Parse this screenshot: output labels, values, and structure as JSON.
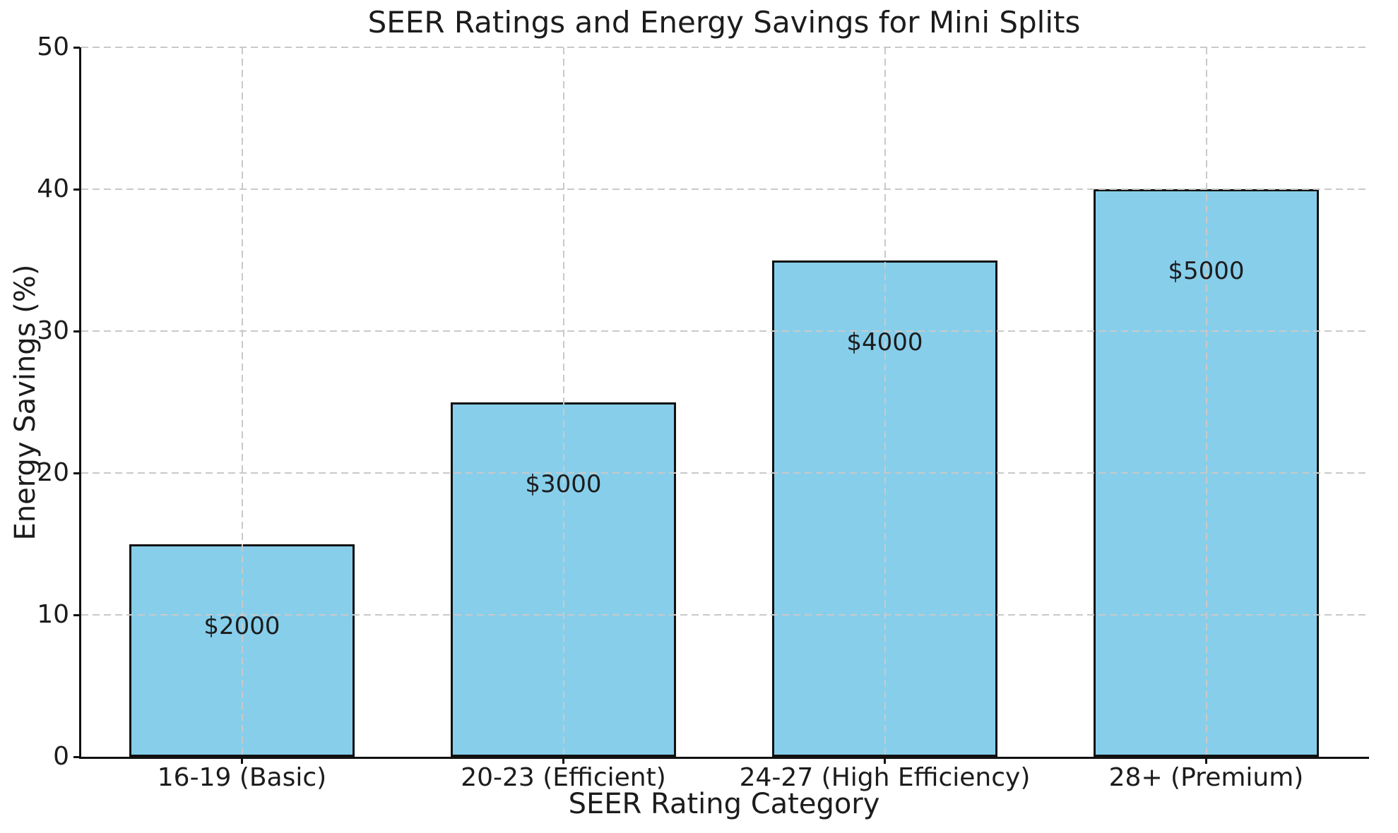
{
  "chart_data": {
    "type": "bar",
    "title": "SEER Ratings and Energy Savings for Mini Splits",
    "xlabel": "SEER Rating Category",
    "ylabel": "Energy Savings (%)",
    "categories": [
      "16-19 (Basic)",
      "20-23 (Efficient)",
      "24-27 (High Efficiency)",
      "28+ (Premium)"
    ],
    "values": [
      15,
      25,
      35,
      40
    ],
    "bar_labels": [
      "$2000",
      "$3000",
      "$4000",
      "$5000"
    ],
    "ylim": [
      0,
      50
    ],
    "yticks": [
      0,
      10,
      20,
      30,
      40,
      50
    ],
    "legend": "none",
    "grid": {
      "style": "dashed",
      "axes": "both",
      "drawn_above_bars": true
    },
    "colors": {
      "bar_fill": "#87CEEB",
      "bar_edge": "#111111",
      "grid": "#c9c9c9",
      "text": "#1c1c1c",
      "background": "#ffffff"
    }
  }
}
